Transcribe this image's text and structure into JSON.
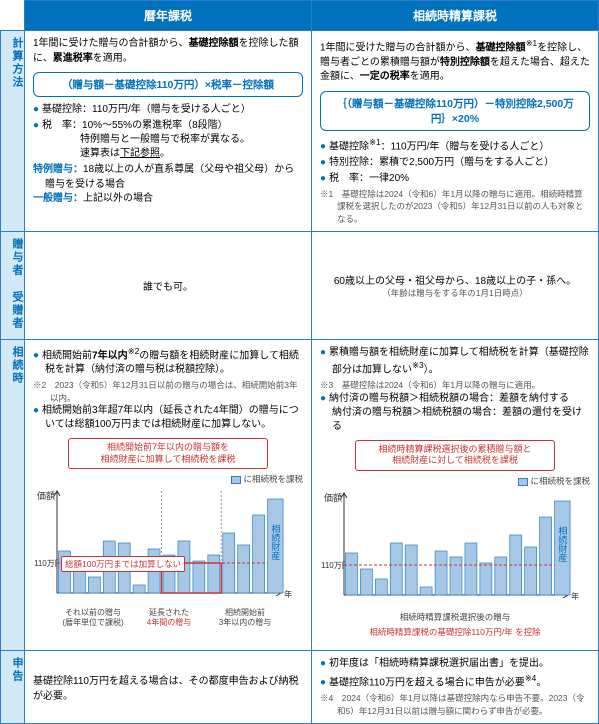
{
  "headers": {
    "left": "暦年課税",
    "right": "相続時精算課税"
  },
  "rowlabels": {
    "method": "計算方法",
    "parties": "贈与者 受贈者",
    "inheritance": "相続時",
    "filing": "申告"
  },
  "method_left": {
    "intro": "1年間に受けた贈与の合計額から、<b>基礎控除額</b>を控除した額に、<b>累進税率</b>を適用。",
    "formula": "（贈与額－基礎控除110万円）×税率－控除額",
    "items": [
      "基礎控除：110万円/年（贈与を受ける人ごと）",
      "税　率：10%～55%の累進税率（8段階）<br><span class='indent'>特例贈与と一般贈与で税率が異なる。</span><br><span class='indent'>速算表は<u>下記参照</u>。</span>"
    ],
    "tokure_label": "特例贈与：",
    "tokure_text": "18歳以上の人が直系尊属（父母や祖父母）から贈与を受ける場合",
    "ippan_label": "一般贈与：",
    "ippan_text": "上記以外の場合"
  },
  "method_right": {
    "intro": "1年間に受けた贈与の合計額から、<b>基礎控除額</b><sup>※1</sup>を控除し、贈与者ごとの累積贈与額が<b>特別控除額</b>を超えた場合、超えた金額に、<b>一定の税率</b>を適用。",
    "formula": "｛（贈与額－基礎控除110万円）－特別控除2,500万円｝×20%",
    "items": [
      "基礎控除<sup>※1</sup>：110万円/年（贈与を受ける人ごと）",
      "特別控除：累積で2,500万円（贈与をする人ごと）",
      "税　率：一律20%"
    ],
    "note1": "※1　基礎控除は2024（令和6）年1月以降の贈与に適用。相続時精算課税を選択したのが2023（令和5）年12月31日以前の人も対象となる。"
  },
  "parties_left": "誰でも可。",
  "parties_right": {
    "main": "60歳以上の父母・祖父母から、18歳以上の子・孫へ。",
    "sub": "（年齢は贈与をする年の1月1日時点）"
  },
  "inherit_left": {
    "item1": "相続開始前<b>7年以内</b><sup>※2</sup>の贈与額を相続財産に加算して相続税を計算（納付済の贈与税は税額控除）。",
    "note2": "※2　2023（令和5）年12月31日以前の贈与の場合は、相続開始前3年以内。",
    "item2": "相続開始前3年超7年以内（延長された4年間）の贈与については総額100万円までは相続財産に加算しない。",
    "chart_title": "相続開始前7年以内の贈与額を<br>相続財産に加算して相続税を課税",
    "legend": "に相続税を課税",
    "callout": "総額100万円までは加算しない",
    "y110": "110万円",
    "yaxis": "価額",
    "zaisan": "相続財産",
    "xlabel1": "それ以前の贈与<br>(暦年単位で課税)",
    "xlabel2_top": "延長された",
    "xlabel2": "4年間の贈与",
    "xlabel3": "相続開始前<br>3年以内の贈与",
    "year": "年",
    "bars": [
      42,
      26,
      16,
      52,
      50,
      8,
      44,
      38,
      52,
      32,
      38,
      60,
      48,
      78
    ],
    "bar_color": "#a7c7e7",
    "bar_border": "#2b7fc9",
    "y110_line": 30
  },
  "inherit_right": {
    "item1": "累積贈与額を相続財産に加算して相続税を計算（基礎控除部分は加算しない<sup>※3</sup>）。",
    "note3": "※3　基礎控除は2024（令和6）年1月以降の贈与に適用。",
    "item2": "納付済の贈与税額＞相続税額の場合：差額を納付する<br>納付済の贈与税額＞相続税額の場合：差額の還付を受ける",
    "chart_title": "相続時精算課税選択後の累積贈与額と<br>相続財産に対して相続税を課税",
    "legend": "に相続税を課税",
    "y110": "110万円",
    "yaxis": "価額",
    "zaisan": "相続財産",
    "caption_top": "相続時精算課税選択後の贈与",
    "caption": "相続時精算課税の基礎控除110万円/年 を控除",
    "year": "年",
    "bars": [
      42,
      26,
      16,
      52,
      50,
      8,
      44,
      38,
      52,
      32,
      38,
      60,
      48,
      78
    ],
    "bar_color": "#a7c7e7",
    "bar_border": "#2b7fc9",
    "y110_line": 30
  },
  "filing_left": "基礎控除110万円を超える場合は、その都度申告および納税が必要。",
  "filing_right": {
    "item1": "初年度は「相続時精算課税選択届出書」を提出。",
    "item2": "基礎控除110万円を超える場合に申告が必要<sup>※4</sup>。",
    "note4": "※4　2024（令和6）年1月以降は基礎控除内なら申告不要。2023（令和5）年12月31日以前は贈与額に関わらず申告が必要。"
  }
}
